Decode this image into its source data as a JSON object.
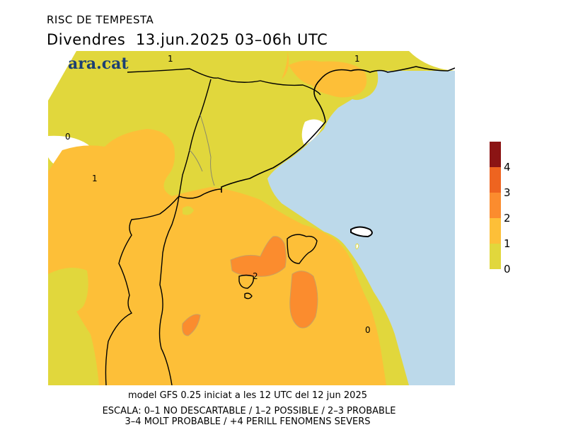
{
  "header": {
    "title": "RISC DE TEMPESTA",
    "subtitle": "Divendres  13.jun.2025 03–06h UTC"
  },
  "brand": "ara.cat",
  "map": {
    "contour_labels": [
      "1",
      "1",
      "0",
      "1",
      "2",
      "0"
    ]
  },
  "footer": {
    "model_line": "model GFS 0.25 iniciat a les 12 UTC del 12 jun 2025",
    "scale_line1": "ESCALA: 0–1 NO DESCARTABLE / 1–2 POSSIBLE / 2–3 PROBABLE",
    "scale_line2": "3–4 MOLT PROBABLE / +4 PERILL FENOMENS SEVERS"
  },
  "legend": {
    "ticks": [
      "4",
      "3",
      "2",
      "1",
      "0"
    ],
    "colors": [
      "#8b1414",
      "#ee6420",
      "#fb8c2e",
      "#fdbf38",
      "#e1d73c"
    ]
  },
  "colors": {
    "level_0_1": "#e1d73c",
    "level_1_2": "#fdbf38",
    "level_2_3": "#fb8c2e",
    "sea": "#bcd9ea",
    "land_no_data": "#ffffff"
  }
}
